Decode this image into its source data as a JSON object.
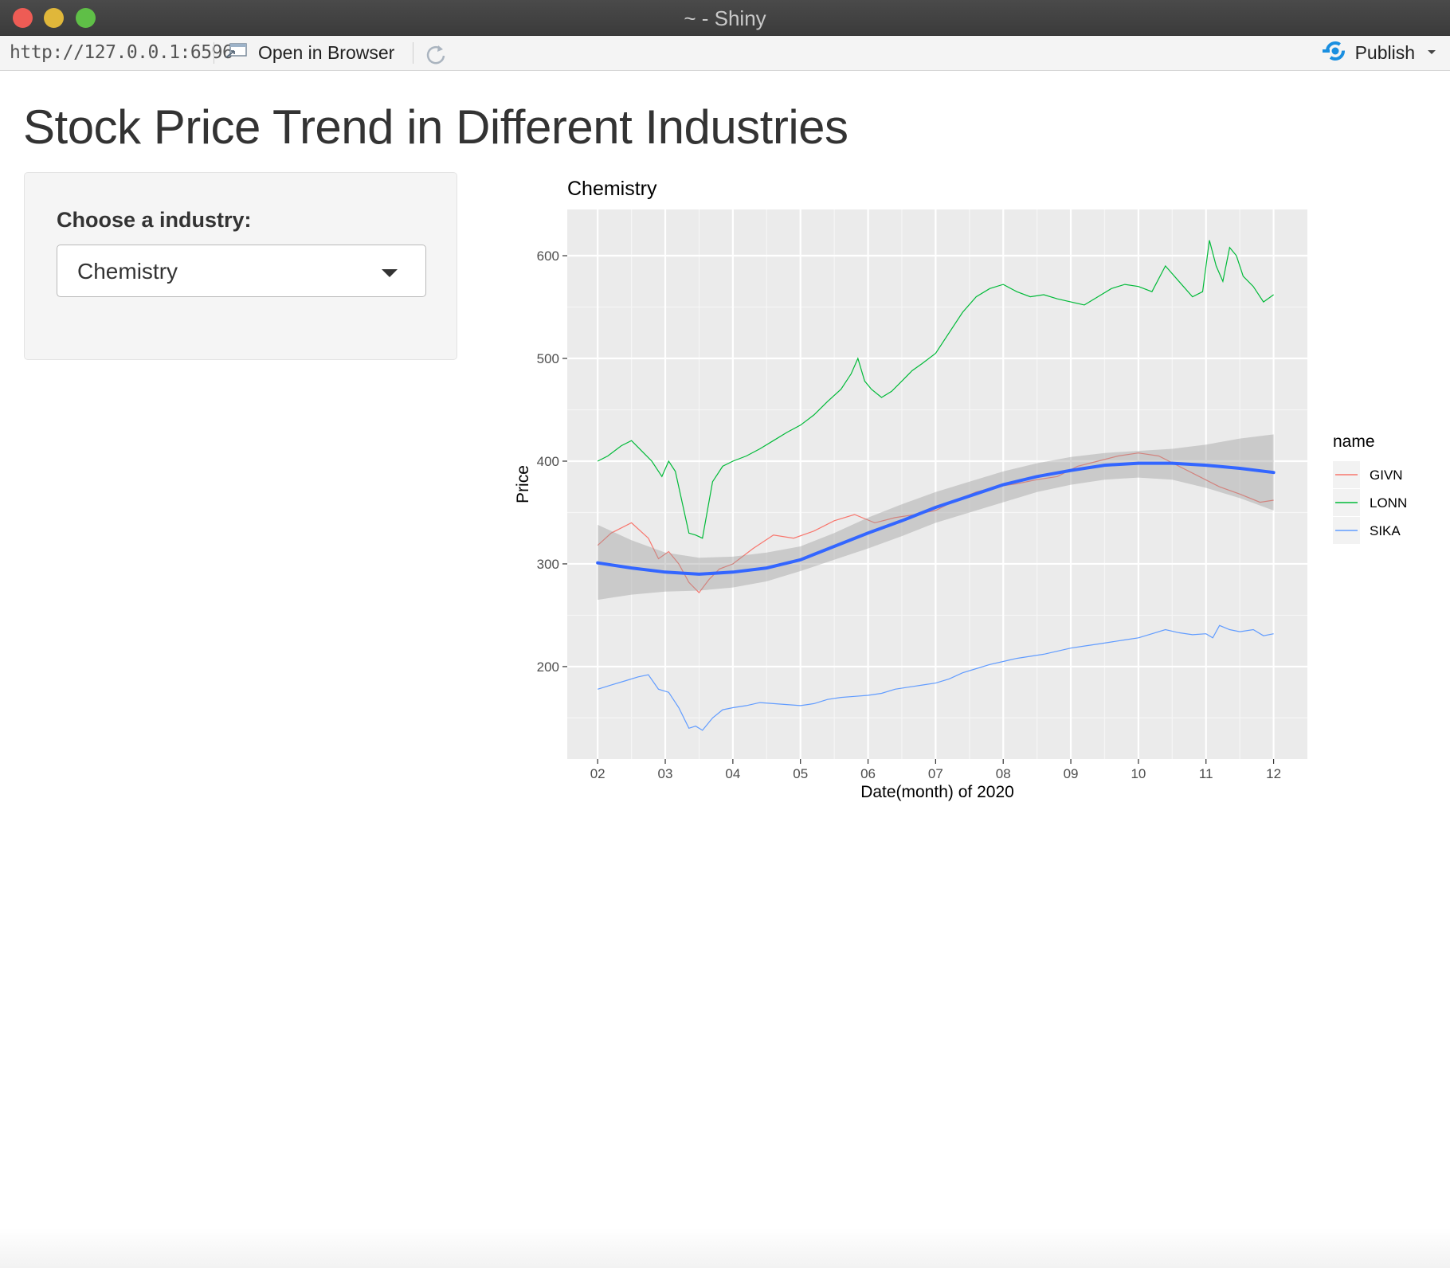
{
  "window": {
    "title": "~ - Shiny",
    "url": "http://127.0.0.1:6596",
    "open_in_browser_label": "Open in Browser",
    "publish_label": "Publish"
  },
  "page": {
    "title": "Stock Price Trend in Different Industries",
    "select_label": "Choose a industry:",
    "select_value": "Chemistry"
  },
  "colors": {
    "GIVN": "#f8766d",
    "LONN": "#00ba38",
    "SIKA": "#619cff",
    "smooth": "#3366ff",
    "panel_bg": "#ebebeb",
    "publish_accent": "#1a8fe0"
  },
  "chart_data": {
    "type": "line",
    "title": "Chemistry",
    "xlabel": "Date(month) of 2020",
    "ylabel": "Price",
    "x_ticks": [
      "02",
      "03",
      "04",
      "05",
      "06",
      "07",
      "08",
      "09",
      "10",
      "11",
      "12"
    ],
    "y_ticks": [
      200,
      300,
      400,
      500,
      600
    ],
    "xlim": [
      1.55,
      12.5
    ],
    "ylim": [
      110,
      645
    ],
    "grid": true,
    "legend_title": "name",
    "legend_position": "right",
    "series": [
      {
        "name": "GIVN",
        "x": [
          2.0,
          2.2,
          2.5,
          2.75,
          2.9,
          3.05,
          3.2,
          3.35,
          3.5,
          3.65,
          3.8,
          4.0,
          4.3,
          4.6,
          4.9,
          5.2,
          5.5,
          5.8,
          6.1,
          6.4,
          6.7,
          7.0,
          7.3,
          7.6,
          7.9,
          8.2,
          8.5,
          8.8,
          9.1,
          9.4,
          9.7,
          10.0,
          10.3,
          10.6,
          10.9,
          11.2,
          11.5,
          11.8,
          12.0
        ],
        "values": [
          318,
          330,
          340,
          325,
          305,
          312,
          300,
          282,
          272,
          285,
          295,
          300,
          315,
          328,
          325,
          332,
          342,
          348,
          340,
          345,
          348,
          352,
          362,
          370,
          375,
          378,
          382,
          385,
          395,
          400,
          405,
          408,
          405,
          395,
          385,
          375,
          368,
          360,
          362
        ]
      },
      {
        "name": "LONN",
        "x": [
          2.0,
          2.15,
          2.35,
          2.5,
          2.65,
          2.8,
          2.95,
          3.05,
          3.15,
          3.25,
          3.35,
          3.45,
          3.55,
          3.7,
          3.85,
          4.0,
          4.2,
          4.4,
          4.6,
          4.8,
          5.0,
          5.2,
          5.4,
          5.6,
          5.75,
          5.85,
          5.95,
          6.05,
          6.2,
          6.35,
          6.5,
          6.65,
          6.8,
          7.0,
          7.2,
          7.4,
          7.6,
          7.8,
          8.0,
          8.2,
          8.4,
          8.6,
          8.8,
          9.0,
          9.2,
          9.4,
          9.6,
          9.8,
          10.0,
          10.2,
          10.4,
          10.6,
          10.8,
          10.95,
          11.05,
          11.15,
          11.25,
          11.35,
          11.45,
          11.55,
          11.7,
          11.85,
          12.0
        ],
        "values": [
          400,
          405,
          415,
          420,
          410,
          400,
          385,
          400,
          390,
          360,
          330,
          328,
          325,
          380,
          395,
          400,
          405,
          412,
          420,
          428,
          435,
          445,
          458,
          470,
          485,
          500,
          478,
          470,
          462,
          468,
          478,
          488,
          495,
          505,
          525,
          545,
          560,
          568,
          572,
          565,
          560,
          562,
          558,
          555,
          552,
          560,
          568,
          572,
          570,
          565,
          590,
          575,
          560,
          565,
          615,
          590,
          575,
          608,
          600,
          580,
          570,
          555,
          562
        ]
      },
      {
        "name": "SIKA",
        "x": [
          2.0,
          2.2,
          2.4,
          2.6,
          2.75,
          2.9,
          3.05,
          3.2,
          3.35,
          3.45,
          3.55,
          3.7,
          3.85,
          4.0,
          4.2,
          4.4,
          4.6,
          4.8,
          5.0,
          5.2,
          5.4,
          5.6,
          5.8,
          6.0,
          6.2,
          6.4,
          6.6,
          6.8,
          7.0,
          7.2,
          7.4,
          7.6,
          7.8,
          8.0,
          8.2,
          8.4,
          8.6,
          8.8,
          9.0,
          9.2,
          9.4,
          9.6,
          9.8,
          10.0,
          10.2,
          10.4,
          10.6,
          10.8,
          11.0,
          11.1,
          11.2,
          11.35,
          11.5,
          11.7,
          11.85,
          12.0
        ],
        "values": [
          178,
          182,
          186,
          190,
          192,
          178,
          175,
          160,
          140,
          142,
          138,
          150,
          158,
          160,
          162,
          165,
          164,
          163,
          162,
          164,
          168,
          170,
          171,
          172,
          174,
          178,
          180,
          182,
          184,
          188,
          194,
          198,
          202,
          205,
          208,
          210,
          212,
          215,
          218,
          220,
          222,
          224,
          226,
          228,
          232,
          236,
          233,
          231,
          232,
          228,
          240,
          236,
          234,
          236,
          230,
          232
        ]
      }
    ],
    "smooth": {
      "x": [
        2.0,
        2.5,
        3.0,
        3.5,
        4.0,
        4.5,
        5.0,
        5.5,
        6.0,
        6.5,
        7.0,
        7.5,
        8.0,
        8.5,
        9.0,
        9.5,
        10.0,
        10.5,
        11.0,
        11.5,
        12.0
      ],
      "values": [
        301,
        296,
        292,
        290,
        292,
        296,
        304,
        317,
        330,
        342,
        355,
        366,
        377,
        385,
        391,
        396,
        398,
        398,
        396,
        393,
        389
      ],
      "ci_lower": [
        265,
        270,
        273,
        274,
        277,
        283,
        293,
        304,
        315,
        327,
        340,
        350,
        360,
        370,
        377,
        382,
        384,
        382,
        374,
        364,
        352
      ],
      "ci_upper": [
        338,
        323,
        311,
        306,
        307,
        311,
        317,
        330,
        345,
        358,
        370,
        380,
        390,
        398,
        404,
        408,
        410,
        412,
        416,
        422,
        426
      ]
    }
  }
}
